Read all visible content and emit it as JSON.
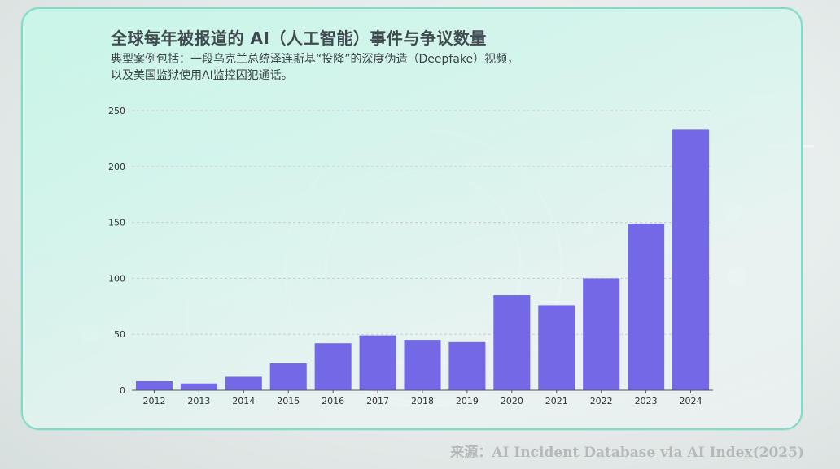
{
  "title": "全球每年被报道的 AI（人工智能）事件与争议数量",
  "subtitle_lines": [
    "典型案例包括：一段乌克兰总统泽连斯基“投降”的深度伪造（Deepfake）视频，",
    "以及美国监狱使用AI监控囚犯通话。"
  ],
  "source": "来源：AI Incident Database via AI Index(2025)",
  "colors": {
    "bar": "#7369e6",
    "accent_border": "#7fdcc8",
    "grid": "#c8d0d4",
    "axis": "#555555"
  },
  "chart_data": {
    "type": "bar",
    "categories": [
      "2012",
      "2013",
      "2014",
      "2015",
      "2016",
      "2017",
      "2018",
      "2019",
      "2020",
      "2021",
      "2022",
      "2023",
      "2024"
    ],
    "values": [
      8,
      6,
      12,
      24,
      42,
      49,
      45,
      43,
      85,
      76,
      100,
      149,
      233
    ],
    "yticks": [
      0,
      50,
      100,
      150,
      200,
      250
    ],
    "ylim": [
      0,
      250
    ],
    "grid": true,
    "legend": "none"
  }
}
